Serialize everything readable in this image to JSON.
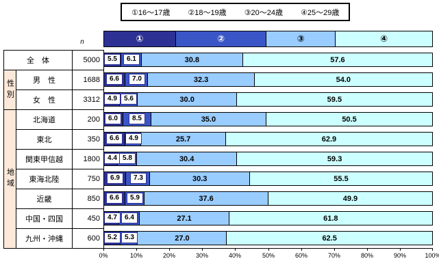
{
  "legend": {
    "items": [
      "①16〜17歳",
      "②18〜19歳",
      "③20〜24歳",
      "④25〜29歳"
    ]
  },
  "n_column_header": "n",
  "header_bar": {
    "segments": [
      {
        "label": "①",
        "width_pct": 22,
        "text_color": "#ffffff"
      },
      {
        "label": "②",
        "width_pct": 27.5,
        "text_color": "#ffffff"
      },
      {
        "label": "③",
        "width_pct": 21,
        "text_color": "#000000"
      },
      {
        "label": "④",
        "width_pct": 29.5,
        "text_color": "#000000"
      }
    ]
  },
  "colors": {
    "series": [
      "#2e3194",
      "#3a56c6",
      "#99ccff",
      "#ccffff"
    ],
    "label_box_border": "#2e3194",
    "group_cell_bg": "#fde9d9",
    "border": "#000000"
  },
  "axis": {
    "tick_labels": [
      "0%",
      "10%",
      "20%",
      "30%",
      "40%",
      "50%",
      "60%",
      "70%",
      "80%",
      "90%",
      "100%"
    ]
  },
  "chart_data": {
    "type": "bar",
    "orientation": "horizontal-stacked",
    "title": "",
    "x_unit": "%",
    "xlim": [
      0,
      100
    ],
    "categories": [
      "全　体",
      "男　性",
      "女　性",
      "北海道",
      "東北",
      "関東甲信越",
      "東海北陸",
      "近畿",
      "中国・四国",
      "九州・沖縄"
    ],
    "n_values": [
      5000,
      1688,
      3312,
      200,
      350,
      1800,
      750,
      850,
      450,
      600
    ],
    "group_spans": [
      {
        "label": "性別",
        "start_row": 1,
        "end_row": 2
      },
      {
        "label": "地域",
        "start_row": 3,
        "end_row": 9
      }
    ],
    "series": [
      {
        "name": "①16〜17歳",
        "values": [
          5.5,
          6.6,
          4.9,
          6.0,
          6.6,
          4.4,
          6.9,
          6.6,
          4.7,
          5.2
        ]
      },
      {
        "name": "②18〜19歳",
        "values": [
          6.1,
          7.0,
          5.6,
          8.5,
          4.9,
          5.8,
          7.3,
          5.9,
          6.4,
          5.3
        ]
      },
      {
        "name": "③20〜24歳",
        "values": [
          30.8,
          32.3,
          30.0,
          35.0,
          25.7,
          30.4,
          30.3,
          37.6,
          27.1,
          27.0
        ]
      },
      {
        "name": "④25〜29歳",
        "values": [
          57.6,
          54.0,
          59.5,
          50.5,
          62.9,
          59.3,
          55.5,
          49.9,
          61.8,
          62.5
        ]
      }
    ]
  }
}
